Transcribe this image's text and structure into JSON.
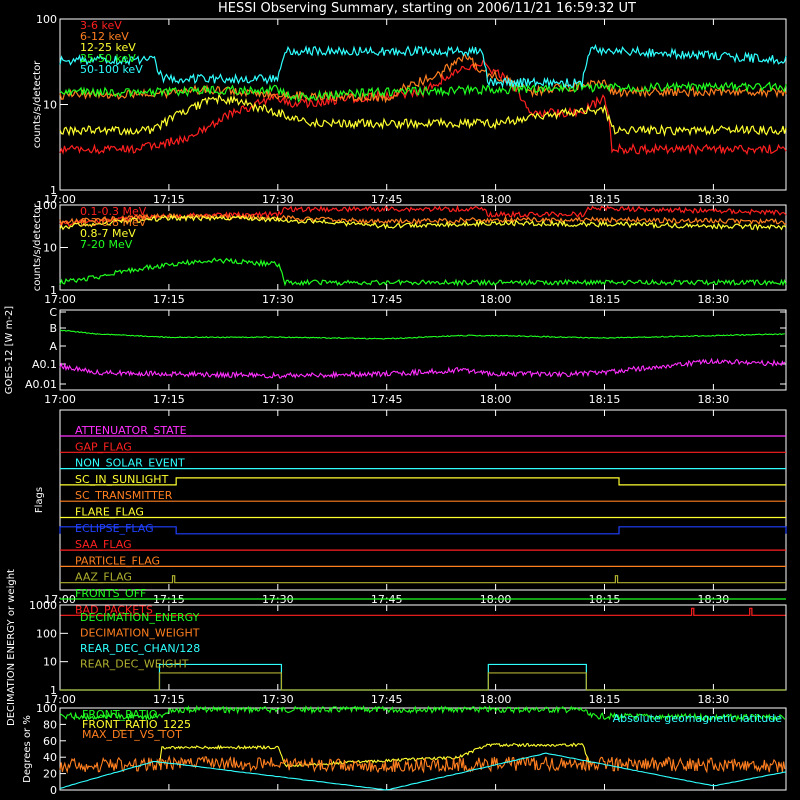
{
  "figure_title": "HESSI Observing Summary, starting on 2006/11/21 16:59:32 UT",
  "time_axis": {
    "start": "17:00",
    "end": "18:40",
    "labels": [
      "17:00",
      "17:15",
      "17:30",
      "17:45",
      "18:00",
      "18:15",
      "18:30"
    ]
  },
  "chart_data": [
    {
      "id": "panel1",
      "type": "line",
      "ylabel": "counts/s/detector",
      "yscale": "log",
      "ylim": [
        1,
        100
      ],
      "ytick_labels": [
        "1",
        "10",
        "100"
      ],
      "legend_placement": "top-left",
      "series": [
        {
          "name": "3-6 keV",
          "color": "#ff2020",
          "x": [
            "17:00",
            "17:10",
            "17:18",
            "17:30",
            "17:32",
            "17:50",
            "17:55",
            "17:58",
            "18:05",
            "18:12",
            "18:15",
            "18:16",
            "18:25",
            "18:40"
          ],
          "values": [
            3,
            3,
            4,
            12,
            10,
            14,
            25,
            30,
            8,
            8,
            12,
            3,
            3,
            3
          ]
        },
        {
          "name": "6-12 keV",
          "color": "#ff7f20",
          "x": [
            "17:00",
            "17:13",
            "17:20",
            "17:30",
            "17:45",
            "17:52",
            "17:56",
            "17:58",
            "18:05",
            "18:15",
            "18:16",
            "18:40"
          ],
          "values": [
            13,
            13,
            15,
            13,
            12,
            22,
            35,
            25,
            14,
            18,
            14,
            14
          ]
        },
        {
          "name": "12-25 keV",
          "color": "#ffff30",
          "x": [
            "17:00",
            "17:13",
            "17:22",
            "17:30",
            "17:35",
            "17:45",
            "18:00",
            "18:15",
            "18:16",
            "18:40"
          ],
          "values": [
            5,
            5,
            12,
            8,
            6,
            6,
            6,
            9,
            5,
            5
          ]
        },
        {
          "name": "25-50 keV",
          "color": "#20ff20",
          "x": [
            "17:00",
            "17:13",
            "17:30",
            "17:32",
            "17:45",
            "18:00",
            "18:15",
            "18:40"
          ],
          "values": [
            14,
            14,
            15,
            12,
            14,
            15,
            16,
            16
          ]
        },
        {
          "name": "50-100 keV",
          "color": "#30ffff",
          "x": [
            "17:00",
            "17:13",
            "17:14",
            "17:30",
            "17:31",
            "17:58",
            "17:59",
            "18:12",
            "18:13",
            "18:40"
          ],
          "values": [
            33,
            33,
            20,
            20,
            42,
            42,
            18,
            18,
            44,
            33
          ]
        }
      ]
    },
    {
      "id": "panel2",
      "type": "line",
      "ylabel": "counts/s/detector",
      "yscale": "log",
      "ylim": [
        1,
        100
      ],
      "ytick_labels": [
        "1",
        "10",
        "100"
      ],
      "legend_placement": "top-left",
      "series": [
        {
          "name": "0.1-0.3 MeV",
          "color": "#ff2020",
          "x": [
            "17:00",
            "17:15",
            "17:30",
            "17:31",
            "17:58",
            "17:59",
            "18:12",
            "18:13",
            "18:40"
          ],
          "values": [
            35,
            55,
            60,
            80,
            80,
            60,
            60,
            85,
            65
          ]
        },
        {
          "name": "0.3-0.8 MeV",
          "color": "#ff7f20",
          "x": [
            "17:00",
            "17:15",
            "17:30",
            "17:45",
            "18:00",
            "18:15",
            "18:40"
          ],
          "values": [
            40,
            55,
            50,
            40,
            45,
            45,
            40
          ]
        },
        {
          "name": "0.8-7 MeV",
          "color": "#ffff30",
          "x": [
            "17:00",
            "17:15",
            "17:30",
            "17:45",
            "18:00",
            "18:15",
            "18:40"
          ],
          "values": [
            30,
            50,
            45,
            32,
            38,
            35,
            30
          ]
        },
        {
          "name": "7-20 MeV",
          "color": "#20ff20",
          "x": [
            "17:00",
            "17:05",
            "17:10",
            "17:15",
            "17:22",
            "17:30",
            "17:31",
            "18:40"
          ],
          "values": [
            1.5,
            2,
            3,
            4,
            5,
            4,
            1.5,
            1.5
          ]
        }
      ]
    },
    {
      "id": "panel3",
      "type": "line",
      "ylabel": "GOES-12 [W m-2]",
      "yscale": "log",
      "ytick_labels": [
        "A0.01",
        "A0.1",
        "A",
        "B",
        "C"
      ],
      "series": [
        {
          "color": "#20ff20",
          "x": [
            "17:00",
            "17:05",
            "17:15",
            "17:30",
            "17:45",
            "17:55",
            "18:00",
            "18:15",
            "18:40"
          ],
          "values": [
            0.75,
            0.7,
            0.66,
            0.66,
            0.64,
            0.68,
            0.68,
            0.65,
            0.7
          ]
        },
        {
          "color": "#ff30ff",
          "x": [
            "17:00",
            "17:05",
            "17:15",
            "17:30",
            "17:45",
            "17:55",
            "18:00",
            "18:10",
            "18:15",
            "18:25",
            "18:30",
            "18:40"
          ],
          "values": [
            0.3,
            0.22,
            0.2,
            0.18,
            0.2,
            0.25,
            0.2,
            0.2,
            0.22,
            0.32,
            0.36,
            0.33
          ]
        }
      ]
    },
    {
      "id": "flags",
      "type": "line",
      "ylabel": "Flags",
      "series": [
        {
          "name": "ATTENUATOR_STATE",
          "color": "#ff30ff",
          "steps": []
        },
        {
          "name": "GAP_FLAG",
          "color": "#ff2020",
          "steps": []
        },
        {
          "name": "NON_SOLAR_EVENT",
          "color": "#30ffff",
          "steps": []
        },
        {
          "name": "SC_IN_SUNLIGHT",
          "color": "#ffff30",
          "steps": [
            [
              "17:16",
              "18:17"
            ]
          ]
        },
        {
          "name": "SC_TRANSMITTER",
          "color": "#ff7f20",
          "steps": []
        },
        {
          "name": "FLARE_FLAG",
          "color": "#ffff30",
          "steps": []
        },
        {
          "name": "ECLIPSE_FLAG",
          "color": "#2040ff",
          "steps": [
            [
              "17:00",
              "17:16"
            ],
            [
              "18:17",
              "18:40"
            ]
          ]
        },
        {
          "name": "SAA_FLAG",
          "color": "#ff2020",
          "steps": []
        },
        {
          "name": "PARTICLE_FLAG",
          "color": "#ff7f20",
          "steps": []
        },
        {
          "name": "AAZ_FLAG",
          "color": "#b0b030",
          "steps": [
            [
              "17:15.5",
              "17:15.8"
            ],
            [
              "18:16.5",
              "18:16.8"
            ]
          ]
        },
        {
          "name": "FRONTS_OFF",
          "color": "#20ff20",
          "steps": []
        },
        {
          "name": "BAD_PACKETS",
          "color": "#ff2020",
          "steps": [
            [
              "18:27",
              "18:27.3"
            ],
            [
              "18:35",
              "18:35.3"
            ]
          ]
        }
      ]
    },
    {
      "id": "panel5",
      "type": "line",
      "ylabel": "DECIMATION ENERGY or weight",
      "yscale": "log",
      "ytick_labels": [
        "1",
        "10",
        "100",
        "1000"
      ],
      "legend_placement": "top-left",
      "series": [
        {
          "name": "DECIMATION_ENERGY",
          "color": "#20ff20",
          "segments": []
        },
        {
          "name": "DECIMATION_WEIGHT",
          "color": "#ff7f20",
          "segments": []
        },
        {
          "name": "REAR_DEC_CHAN/128",
          "color": "#30ffff",
          "segments": [
            {
              "start": "17:13.7",
              "end": "17:30.5",
              "value": 8
            },
            {
              "start": "17:59",
              "end": "18:12.5",
              "value": 8
            }
          ]
        },
        {
          "name": "REAR_DEC_WEIGHT",
          "color": "#b0b030",
          "segments": [
            {
              "start": "17:13.7",
              "end": "17:30.5",
              "value": 4
            },
            {
              "start": "17:59",
              "end": "18:12.5",
              "value": 4
            }
          ]
        }
      ]
    },
    {
      "id": "panel6",
      "type": "line",
      "ylabel": "Degrees or %",
      "ylim": [
        0,
        100
      ],
      "ytick_labels": [
        "0",
        "20",
        "40",
        "60",
        "80",
        "100"
      ],
      "annotation": "Absolute geomagnetic latitude",
      "series": [
        {
          "name": "FRONT_RATIO",
          "color": "#20ff20",
          "x": [
            "17:00",
            "17:14",
            "17:15",
            "18:12",
            "18:13",
            "18:40"
          ],
          "values": [
            90,
            90,
            98,
            98,
            90,
            88
          ]
        },
        {
          "name": "FRONT_RATIO_1225",
          "color": "#ffff30",
          "x": [
            "17:13.7",
            "17:14",
            "17:30",
            "17:31",
            "17:55",
            "17:57",
            "17:59",
            "18:12",
            "18:13"
          ],
          "values": [
            30,
            52,
            52,
            30,
            40,
            48,
            55,
            55,
            30
          ]
        },
        {
          "name": "MAX_DET_VS_TOT",
          "color": "#ff7f20",
          "x": [
            "17:00",
            "17:15",
            "17:30",
            "17:45",
            "18:00",
            "18:15",
            "18:40"
          ],
          "values": [
            30,
            32,
            32,
            30,
            32,
            32,
            30
          ]
        },
        {
          "name": "Absolute geomagnetic latitude",
          "color": "#30ffff",
          "x": [
            "17:00",
            "17:13",
            "17:45",
            "18:07",
            "18:30",
            "18:40"
          ],
          "values": [
            2,
            35,
            0,
            45,
            5,
            22
          ]
        }
      ]
    }
  ]
}
